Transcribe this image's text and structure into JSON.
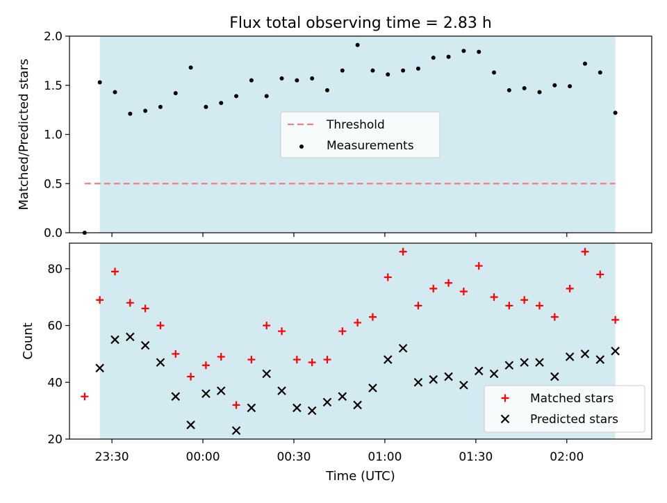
{
  "figure": {
    "title": "Flux total observing time = 2.83 h",
    "xlabel": "Time (UTC)"
  },
  "colors": {
    "shade": "#d4eaf1",
    "threshold": "#f08080",
    "measurement": "#000000",
    "matched": "#ff0000",
    "predicted": "#000000"
  },
  "chart_data": [
    {
      "type": "scatter",
      "ylabel": "Matched/Predicted stars",
      "ylim": [
        0.0,
        2.0
      ],
      "yticks": [
        "0.0",
        "0.5",
        "1.0",
        "1.5",
        "2.0"
      ],
      "xlim": [
        "23:16",
        "02:28"
      ],
      "xticks": [
        "23:30",
        "00:00",
        "00:30",
        "01:00",
        "01:30",
        "02:00"
      ],
      "shaded_span": [
        "23:26",
        "02:16"
      ],
      "legend": {
        "position": "center",
        "entries": [
          "Threshold",
          "Measurements"
        ]
      },
      "series": [
        {
          "name": "Threshold",
          "style": "dashed-line",
          "x": [
            "23:21",
            "02:16"
          ],
          "y": [
            0.5,
            0.5
          ]
        },
        {
          "name": "Measurements",
          "style": "dot",
          "x": [
            "23:21",
            "23:26",
            "23:31",
            "23:36",
            "23:41",
            "23:46",
            "23:51",
            "23:56",
            "00:01",
            "00:06",
            "00:11",
            "00:16",
            "00:21",
            "00:26",
            "00:31",
            "00:36",
            "00:41",
            "00:46",
            "00:51",
            "00:56",
            "01:01",
            "01:06",
            "01:11",
            "01:16",
            "01:21",
            "01:26",
            "01:31",
            "01:36",
            "01:41",
            "01:46",
            "01:51",
            "01:56",
            "02:01",
            "02:06",
            "02:11",
            "02:16"
          ],
          "y": [
            0.0,
            1.53,
            1.43,
            1.21,
            1.24,
            1.28,
            1.42,
            1.68,
            1.28,
            1.32,
            1.39,
            1.55,
            1.39,
            1.57,
            1.55,
            1.57,
            1.45,
            1.65,
            1.91,
            1.65,
            1.61,
            1.65,
            1.67,
            1.78,
            1.79,
            1.85,
            1.84,
            1.63,
            1.45,
            1.47,
            1.43,
            1.5,
            1.49,
            1.72,
            1.63,
            1.22
          ]
        }
      ]
    },
    {
      "type": "scatter",
      "ylabel": "Count",
      "ylim": [
        20,
        89
      ],
      "yticks": [
        "20",
        "40",
        "60",
        "80"
      ],
      "xlim": [
        "23:16",
        "02:28"
      ],
      "xticks": [
        "23:30",
        "00:00",
        "00:30",
        "01:00",
        "01:30",
        "02:00"
      ],
      "shaded_span": [
        "23:26",
        "02:16"
      ],
      "legend": {
        "position": "lower right",
        "entries": [
          "Matched stars",
          "Predicted stars"
        ]
      },
      "series": [
        {
          "name": "Matched stars",
          "style": "plus",
          "x": [
            "23:21",
            "23:26",
            "23:31",
            "23:36",
            "23:41",
            "23:46",
            "23:51",
            "23:56",
            "00:01",
            "00:06",
            "00:11",
            "00:16",
            "00:21",
            "00:26",
            "00:31",
            "00:36",
            "00:41",
            "00:46",
            "00:51",
            "00:56",
            "01:01",
            "01:06",
            "01:11",
            "01:16",
            "01:21",
            "01:26",
            "01:31",
            "01:36",
            "01:41",
            "01:46",
            "01:51",
            "01:56",
            "02:01",
            "02:06",
            "02:11",
            "02:16"
          ],
          "y": [
            35,
            69,
            79,
            68,
            66,
            60,
            50,
            42,
            46,
            49,
            32,
            48,
            60,
            58,
            48,
            47,
            48,
            58,
            61,
            63,
            77,
            86,
            67,
            73,
            75,
            72,
            81,
            70,
            67,
            69,
            67,
            63,
            73,
            86,
            78,
            62
          ]
        },
        {
          "name": "Predicted stars",
          "style": "x",
          "x": [
            "23:26",
            "23:31",
            "23:36",
            "23:41",
            "23:46",
            "23:51",
            "23:56",
            "00:01",
            "00:06",
            "00:11",
            "00:16",
            "00:21",
            "00:26",
            "00:31",
            "00:36",
            "00:41",
            "00:46",
            "00:51",
            "00:56",
            "01:01",
            "01:06",
            "01:11",
            "01:16",
            "01:21",
            "01:26",
            "01:31",
            "01:36",
            "01:41",
            "01:46",
            "01:51",
            "01:56",
            "02:01",
            "02:06",
            "02:11",
            "02:16"
          ],
          "y": [
            45,
            55,
            56,
            53,
            47,
            35,
            25,
            36,
            37,
            23,
            31,
            43,
            37,
            31,
            30,
            33,
            35,
            32,
            38,
            48,
            52,
            40,
            41,
            42,
            39,
            44,
            43,
            46,
            47,
            47,
            42,
            49,
            50,
            48,
            51
          ]
        }
      ]
    }
  ]
}
